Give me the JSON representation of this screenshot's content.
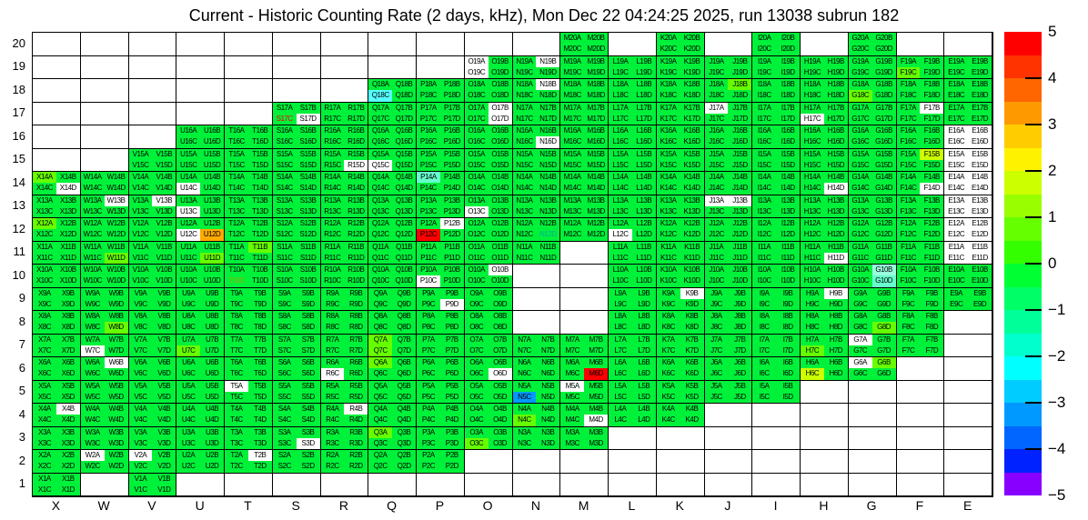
{
  "title": "Current - Historic Counting Rate (2 days, kHz), Mon Dec 22 04:24:25 2025, run 13038 subrun 182",
  "x_axis_labels": [
    "X",
    "W",
    "V",
    "U",
    "T",
    "S",
    "R",
    "Q",
    "P",
    "O",
    "N",
    "M",
    "L",
    "K",
    "J",
    "I",
    "H",
    "G",
    "F",
    "E"
  ],
  "y_axis_labels": [
    "20",
    "19",
    "18",
    "17",
    "16",
    "15",
    "14",
    "13",
    "12",
    "11",
    "10",
    "9",
    "8",
    "7",
    "6",
    "5",
    "4",
    "3",
    "2",
    "1"
  ],
  "palette": {
    "present_default": "#00f13a",
    "absent": "#ffffff",
    "label_text": "#000000"
  },
  "colorbar": {
    "tick_labels": [
      "5",
      "4",
      "3",
      "2",
      "1",
      "0",
      "−1",
      "−2",
      "−3",
      "−4",
      "−5"
    ],
    "segment_colors": [
      "#ff0000",
      "#ff3300",
      "#ff6600",
      "#ff9900",
      "#ffcc00",
      "#fff200",
      "#ccff00",
      "#99ff00",
      "#66ff00",
      "#33ff00",
      "#00ff33",
      "#00ff66",
      "#00ff99",
      "#00ffcc",
      "#00ffff",
      "#00ccff",
      "#0099ff",
      "#0066ff",
      "#0022ff",
      "#8800ff"
    ]
  },
  "chart_data": {
    "type": "heatmap",
    "title": "Current - Historic Counting Rate (2 days, kHz), Mon Dec 22 04:24:25 2025, run 13038 subrun 182",
    "x_categories": [
      "X",
      "W",
      "V",
      "U",
      "T",
      "S",
      "R",
      "Q",
      "P",
      "O",
      "N",
      "M",
      "L",
      "K",
      "J",
      "I",
      "H",
      "G",
      "F",
      "E"
    ],
    "y_categories": [
      20,
      19,
      18,
      17,
      16,
      15,
      14,
      13,
      12,
      11,
      10,
      9,
      8,
      7,
      6,
      5,
      4,
      3,
      2,
      1
    ],
    "zlim": [
      -5,
      5
    ],
    "z_units": "kHz (current minus historic counting rate)",
    "quadrant_order": [
      "A",
      "B",
      "C",
      "D"
    ],
    "cell_structure": "each (column,row) module holds 4 channels: A top-left, B top-right, C bottom-left, D bottom-right",
    "rows_present": {
      "20": [
        "M",
        "K",
        "I",
        "G"
      ],
      "19": [
        "O",
        "N",
        "M",
        "L",
        "K",
        "J",
        "I",
        "H",
        "G",
        "F",
        "E"
      ],
      "18": [
        "Q",
        "P",
        "O",
        "N",
        "M",
        "L",
        "K",
        "J",
        "I",
        "H",
        "G",
        "F",
        "E"
      ],
      "17": [
        "S",
        "R",
        "Q",
        "P",
        "O",
        "N",
        "M",
        "L",
        "K",
        "J",
        "I",
        "H",
        "G",
        "F",
        "E"
      ],
      "16": [
        "U",
        "T",
        "S",
        "R",
        "Q",
        "P",
        "O",
        "N",
        "M",
        "L",
        "K",
        "J",
        "I",
        "H",
        "G",
        "F",
        "E"
      ],
      "15": [
        "V",
        "U",
        "T",
        "S",
        "R",
        "Q",
        "P",
        "O",
        "N",
        "M",
        "L",
        "K",
        "J",
        "I",
        "H",
        "G",
        "F",
        "E"
      ],
      "14": [
        "X",
        "W",
        "V",
        "U",
        "T",
        "S",
        "R",
        "Q",
        "P",
        "O",
        "N",
        "M",
        "L",
        "K",
        "J",
        "I",
        "H",
        "G",
        "F",
        "E"
      ],
      "13": [
        "X",
        "W",
        "V",
        "U",
        "T",
        "S",
        "R",
        "Q",
        "P",
        "O",
        "N",
        "M",
        "L",
        "K",
        "J",
        "I",
        "H",
        "G",
        "F",
        "E"
      ],
      "12": [
        "X",
        "W",
        "V",
        "U",
        "T",
        "S",
        "R",
        "Q",
        "P",
        "O",
        "N",
        "M",
        "L",
        "K",
        "J",
        "I",
        "H",
        "G",
        "F",
        "E"
      ],
      "11": [
        "X",
        "W",
        "V",
        "U",
        "T",
        "S",
        "R",
        "Q",
        "P",
        "O",
        "N",
        "L",
        "K",
        "J",
        "I",
        "H",
        "G",
        "F",
        "E"
      ],
      "10": [
        "X",
        "W",
        "V",
        "U",
        "T",
        "S",
        "R",
        "Q",
        "P",
        "O",
        "L",
        "K",
        "J",
        "I",
        "H",
        "G",
        "F",
        "E"
      ],
      "9": [
        "X",
        "W",
        "V",
        "U",
        "T",
        "S",
        "R",
        "Q",
        "P",
        "O",
        "L",
        "K",
        "J",
        "I",
        "H",
        "G",
        "F",
        "E"
      ],
      "8": [
        "X",
        "W",
        "V",
        "U",
        "T",
        "S",
        "R",
        "Q",
        "P",
        "O",
        "L",
        "K",
        "J",
        "I",
        "H",
        "G",
        "F"
      ],
      "7": [
        "X",
        "W",
        "V",
        "U",
        "T",
        "S",
        "R",
        "Q",
        "P",
        "O",
        "N",
        "M",
        "L",
        "K",
        "J",
        "I",
        "H",
        "G",
        "F"
      ],
      "6": [
        "X",
        "W",
        "V",
        "U",
        "T",
        "S",
        "R",
        "Q",
        "P",
        "O",
        "N",
        "M",
        "L",
        "K",
        "J",
        "I",
        "H",
        "G"
      ],
      "5": [
        "X",
        "W",
        "V",
        "U",
        "T",
        "S",
        "R",
        "Q",
        "P",
        "O",
        "N",
        "M",
        "L",
        "K",
        "J",
        "I"
      ],
      "4": [
        "X",
        "W",
        "V",
        "U",
        "T",
        "S",
        "R",
        "Q",
        "P",
        "O",
        "N",
        "M",
        "L",
        "K"
      ],
      "3": [
        "X",
        "W",
        "V",
        "U",
        "T",
        "S",
        "R",
        "Q",
        "P",
        "O",
        "N",
        "M"
      ],
      "2": [
        "X",
        "W",
        "V",
        "U",
        "T",
        "S",
        "R",
        "Q",
        "P"
      ],
      "1": [
        "X",
        "V"
      ]
    },
    "quad_color_overrides": {
      "#ffffff": [
        "O19A",
        "O19C",
        "N19B",
        "N18B",
        "S17D",
        "O17B",
        "O17D",
        "J17A",
        "H17C",
        "F17B",
        "N16D",
        "E16A",
        "E16B",
        "E16C",
        "E16D",
        "R15D",
        "Q15C",
        "E15A",
        "E15B",
        "E15C",
        "E15D",
        "X14D",
        "U14C",
        "H14D",
        "F14D",
        "E14A",
        "E14B",
        "E14C",
        "E14D",
        "W13B",
        "V13B",
        "U13C",
        "O13C",
        "J13A",
        "J13B",
        "E13A",
        "E13B",
        "E13C",
        "E13D",
        "U12C",
        "P12B",
        "L12C",
        "E12A",
        "E12B",
        "E12C",
        "E12D",
        "H11D",
        "E11A",
        "E11B",
        "E11C",
        "E11D",
        "P10C",
        "O10B",
        "P9D",
        "K9B",
        "H9B",
        "W7C",
        "G7A",
        "W6B",
        "R6C",
        "O6D",
        "G6A",
        "T5A",
        "M5A",
        "X4B",
        "R4B",
        "M4D",
        "S3D",
        "W2A",
        "V2A",
        "T2B"
      ],
      "#66ff00": [
        "F19C",
        "J18B",
        "G18C",
        "X14A",
        "X12A",
        "W11D",
        "U11D",
        "T11B",
        "W8D",
        "G8D",
        "U7C",
        "Q7A",
        "Q7C",
        "H7C",
        "Q6A",
        "G6B",
        "N4C",
        "Q3A",
        "O3C"
      ],
      "#ccff00": [
        "F15B",
        "H6C"
      ],
      "#ffaa00": [
        "U12D"
      ],
      "#ff0000": [
        "P12C",
        "M6D"
      ],
      "#0099ff": [
        "N5C"
      ],
      "#55ffff": [
        "Q18C"
      ],
      "#66ffcc": [
        "P14A",
        "G10D"
      ],
      "#99ffdd": [
        "G10B"
      ]
    },
    "quad_text_color_overrides": {
      "#ff0000": [
        "S17C"
      ],
      "#a8a800": [
        "T10C"
      ],
      "#00b0a0": [
        "N12D"
      ]
    },
    "approx_values_kHz": {
      "P12C": 5,
      "M6D": 5,
      "U12D": 3.2,
      "H6C": 1.8,
      "F15B": 1.8,
      "F19C": 0.8,
      "J18B": 0.8,
      "G18C": 0.8,
      "X14A": 0.8,
      "X12A": 0.8,
      "W11D": 0.8,
      "U11D": 0.8,
      "T11B": 0.8,
      "W8D": 0.8,
      "G8D": 0.8,
      "U7C": 0.8,
      "Q7A": 0.8,
      "Q7C": 0.8,
      "H7C": 0.8,
      "Q6A": 0.8,
      "G6B": 0.8,
      "N4C": 0.8,
      "Q3A": 0.8,
      "O3C": 0.8,
      "Q18C": -2.2,
      "P14A": -1.2,
      "G10D": -1.2,
      "G10B": -1.0,
      "N5C": -3.0,
      "default_all_other_present_channels": 0
    },
    "white_quadrants_meaning": "labelled white quadrants are out of colour range / no data; unlabelled white cells have no module",
    "legend_position": "right colorbar",
    "grid": "on"
  }
}
